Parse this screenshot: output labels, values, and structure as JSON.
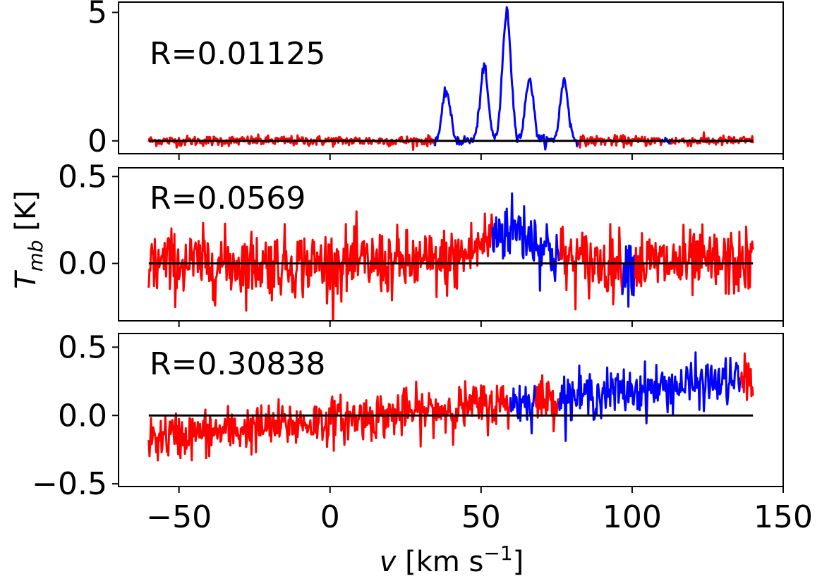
{
  "chart_data": {
    "type": "line",
    "xlabel_parts": {
      "var": "v",
      "unit": " [km s",
      "sup": "−1",
      "close": "]"
    },
    "ylabel_parts": {
      "var": "T",
      "sub": "mb",
      "unit": " [K]"
    },
    "xlim": [
      -70,
      150
    ],
    "xticks": [
      -50,
      0,
      50,
      100,
      150
    ],
    "xtick_labels": [
      "−50",
      "0",
      "50",
      "100",
      "150"
    ],
    "colors": {
      "noise": "#ff0000",
      "signal": "#0000ff",
      "baseline": "#000000"
    },
    "panels": [
      {
        "annotation": "R=0.01125",
        "ylim": [
          -0.5,
          5.4
        ],
        "yticks": [
          0,
          5
        ],
        "ytick_labels": [
          "0",
          "5"
        ],
        "noise_sd": 0.1,
        "trend": [
          0,
          0
        ],
        "peaks": [
          {
            "center": 38.5,
            "amp": 1.95,
            "sigma": 1.3
          },
          {
            "center": 51.0,
            "amp": 2.85,
            "sigma": 1.3
          },
          {
            "center": 58.5,
            "amp": 5.0,
            "sigma": 1.4
          },
          {
            "center": 66.0,
            "amp": 2.45,
            "sigma": 1.3
          },
          {
            "center": 77.5,
            "amp": 2.35,
            "sigma": 1.3
          }
        ],
        "signal_ranges": [
          [
            35,
            82
          ],
          [
            110,
            113
          ]
        ]
      },
      {
        "annotation": "R=0.0569",
        "ylim": [
          -0.33,
          0.55
        ],
        "yticks": [
          0.0,
          0.5
        ],
        "ytick_labels": [
          "0.0",
          "0.5"
        ],
        "noise_sd": 0.095,
        "trend": [
          0,
          0
        ],
        "peaks": [
          {
            "center": 60,
            "amp": 0.2,
            "sigma": 9
          }
        ],
        "signal_ranges": [
          [
            54,
            76
          ],
          [
            97,
            101
          ]
        ]
      },
      {
        "annotation": "R=0.30838",
        "ylim": [
          -0.52,
          0.6
        ],
        "yticks": [
          -0.5,
          0.0,
          0.5
        ],
        "ytick_labels": [
          "−0.5",
          "0.0",
          "0.5"
        ],
        "noise_sd": 0.085,
        "trend": [
          -0.17,
          0.27
        ],
        "peaks": [],
        "signal_ranges": [
          [
            60,
            68
          ],
          [
            76,
            136
          ]
        ]
      }
    ]
  }
}
